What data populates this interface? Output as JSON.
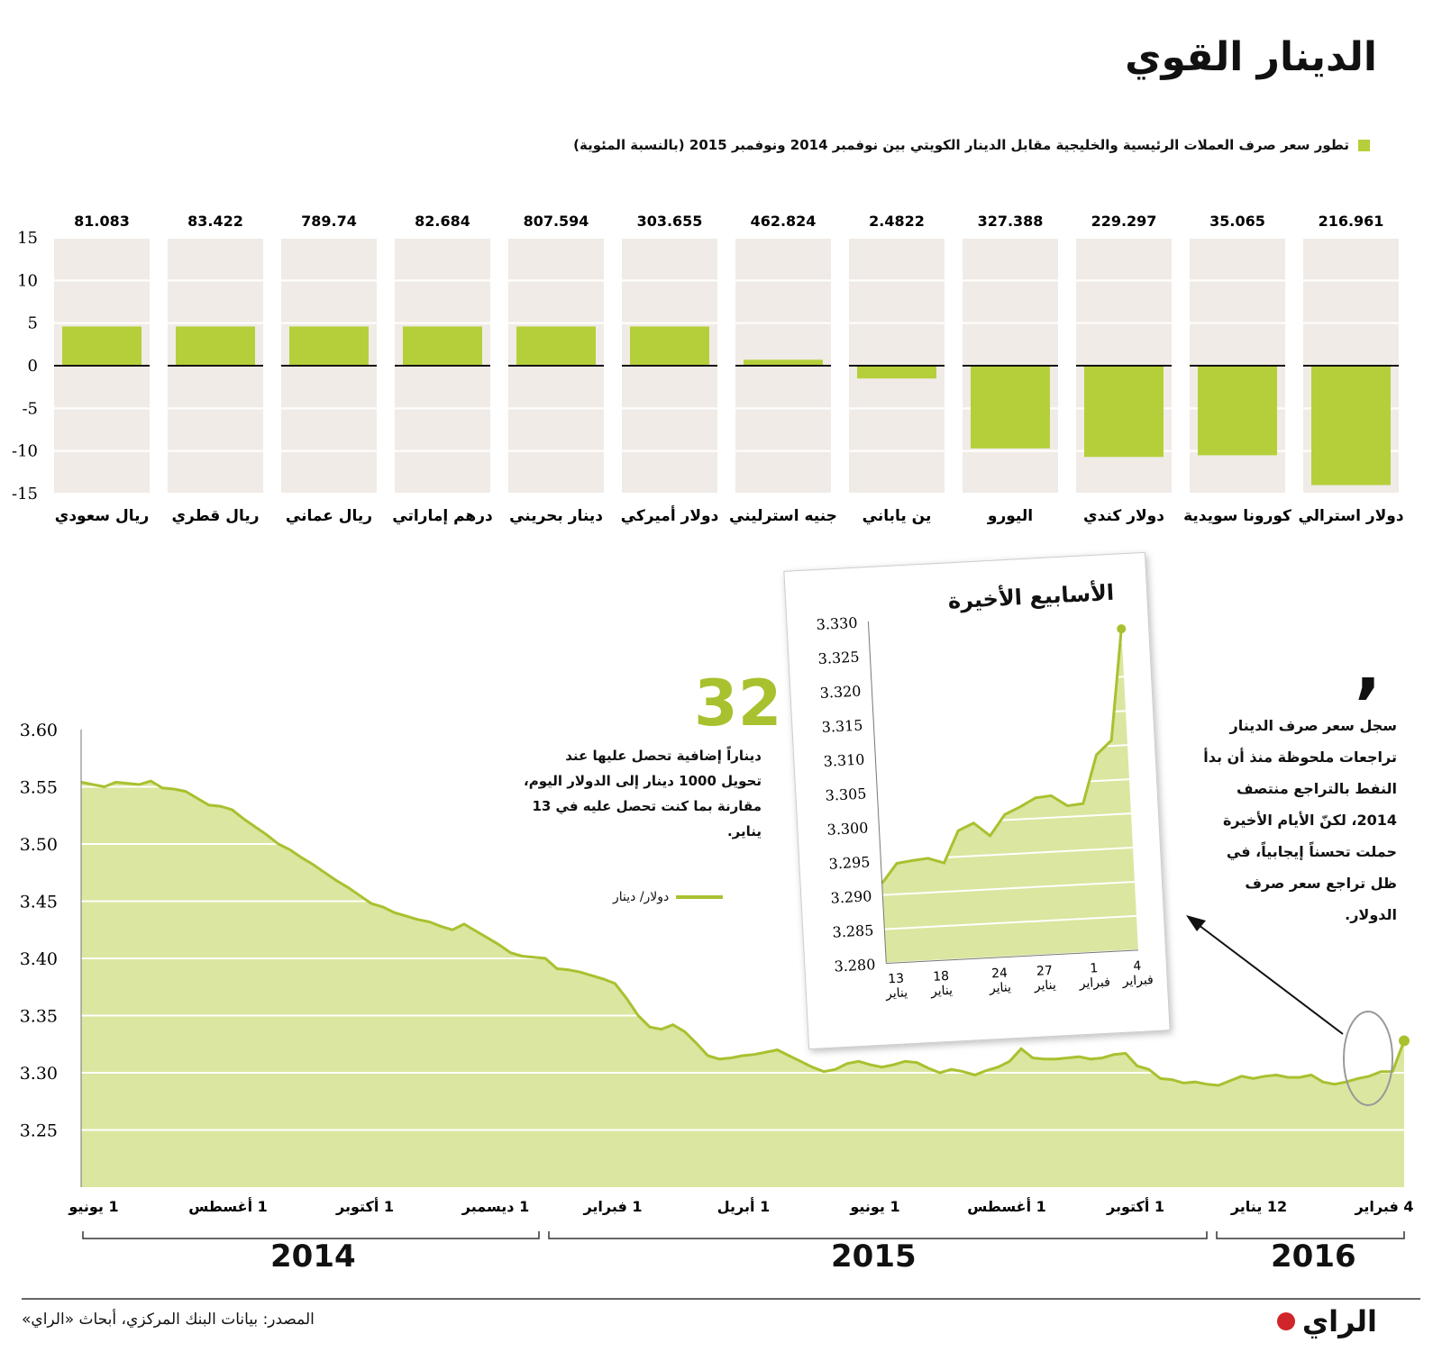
{
  "title": "الدينار القوي",
  "subtitle": "تطور سعر صرف العملات الرئيسية والخليجية مقابل الدينار الكويتي بين نوفمبر 2014 ونوفمبر 2015 (بالنسبة المئوية)",
  "note_number": "32",
  "note_text": "ديناراً إضافية تحصل عليها عند تحويل 1000 دينار إلى الدولار اليوم، مقارنة بما كنت تحصل عليه في 13 يناير.",
  "quote_mark": "‚",
  "quote_text": "سجل سعر صرف الدينار تراجعات ملحوظة منذ أن بدأ النفط بالتراجع منتصف 2014، لكنّ الأيام الأخيرة حملت تحسناً إيجابياً، في ظل تراجع سعر صرف الدولار.",
  "source": "المصدر: بيانات البنك المركزي، أبحاث «الراي»",
  "logo": "الراي",
  "colors": {
    "bar": "#b5cf3a",
    "panel": "#f0ebe6",
    "line": "#a8c12f",
    "area": "#dbe6a0"
  },
  "chart_data": [
    {
      "type": "bar",
      "title": "تطور سعر صرف العملات الرئيسية والخليجية مقابل الدينار الكويتي بين نوفمبر 2014 ونوفمبر 2015 (بالنسبة المئوية)",
      "ylim": [
        -15,
        15
      ],
      "yticks": [
        15,
        10,
        5,
        0,
        -5,
        -10,
        -15
      ],
      "categories": [
        "ريال سعودي",
        "ريال قطري",
        "ريال عماني",
        "درهم إماراتي",
        "دينار بحريني",
        "دولار أميركي",
        "جنيه استرليني",
        "ين ياباني",
        "اليورو",
        "دولار كندي",
        "كورونا سويدية",
        "دولار استرالي"
      ],
      "rates": [
        "81.083",
        "83.422",
        "789.74",
        "82.684",
        "807.594",
        "303.655",
        "462.824",
        "2.4822",
        "327.388",
        "229.297",
        "35.065",
        "216.961"
      ],
      "values": [
        4.6,
        4.6,
        4.6,
        4.6,
        4.6,
        4.6,
        0.7,
        -1.5,
        -9.7,
        -10.7,
        -10.5,
        -14.0
      ]
    },
    {
      "type": "area",
      "series_name": "دولار/ دينار",
      "ylim": [
        3.2,
        3.6
      ],
      "yticks": [
        "3.60",
        "3.55",
        "3.50",
        "3.45",
        "3.40",
        "3.35",
        "3.30",
        "3.25"
      ],
      "xtick_labels": [
        "1 يونيو",
        "1 أغسطس",
        "1 أكتوبر",
        "1 ديسمبر",
        "1 فبراير",
        "1 أبريل",
        "1 يونيو",
        "1 أغسطس",
        "1 أكتوبر",
        "12 يناير",
        "4 فبراير"
      ],
      "years": [
        "2014",
        "2015",
        "2016"
      ],
      "values": [
        3.554,
        3.552,
        3.55,
        3.554,
        3.553,
        3.552,
        3.555,
        3.549,
        3.548,
        3.546,
        3.54,
        3.534,
        3.533,
        3.53,
        3.522,
        3.515,
        3.508,
        3.5,
        3.495,
        3.488,
        3.482,
        3.475,
        3.468,
        3.462,
        3.455,
        3.448,
        3.445,
        3.44,
        3.437,
        3.434,
        3.432,
        3.428,
        3.425,
        3.43,
        3.424,
        3.418,
        3.412,
        3.405,
        3.402,
        3.401,
        3.4,
        3.391,
        3.39,
        3.388,
        3.385,
        3.382,
        3.378,
        3.365,
        3.35,
        3.34,
        3.338,
        3.342,
        3.336,
        3.326,
        3.315,
        3.312,
        3.313,
        3.315,
        3.316,
        3.318,
        3.32,
        3.315,
        3.31,
        3.305,
        3.301,
        3.303,
        3.308,
        3.31,
        3.307,
        3.305,
        3.307,
        3.31,
        3.309,
        3.304,
        3.3,
        3.303,
        3.301,
        3.298,
        3.302,
        3.305,
        3.31,
        3.321,
        3.313,
        3.312,
        3.312,
        3.313,
        3.314,
        3.312,
        3.313,
        3.316,
        3.317,
        3.306,
        3.303,
        3.295,
        3.294,
        3.291,
        3.292,
        3.29,
        3.289,
        3.293,
        3.297,
        3.295,
        3.297,
        3.298,
        3.296,
        3.296,
        3.298,
        3.292,
        3.29,
        3.292,
        3.295,
        3.297,
        3.301,
        3.301,
        3.328
      ]
    },
    {
      "type": "area",
      "title": "الأسابيع الأخيرة",
      "ylim": [
        3.28,
        3.33
      ],
      "yticks": [
        "3.330",
        "3.325",
        "3.320",
        "3.315",
        "3.310",
        "3.305",
        "3.300",
        "3.295",
        "3.290",
        "3.285",
        "3.280"
      ],
      "xtick_labels": [
        "13 يناير",
        "18 يناير",
        "24 يناير",
        "27 يناير",
        "1 فبراير",
        "4 فبراير"
      ],
      "values": [
        3.2917,
        3.2945,
        3.2948,
        3.295,
        3.2942,
        3.2988,
        3.2998,
        3.2978,
        3.3008,
        3.3018,
        3.303,
        3.3032,
        3.3016,
        3.3018,
        3.3088,
        3.3108,
        3.327
      ]
    }
  ]
}
